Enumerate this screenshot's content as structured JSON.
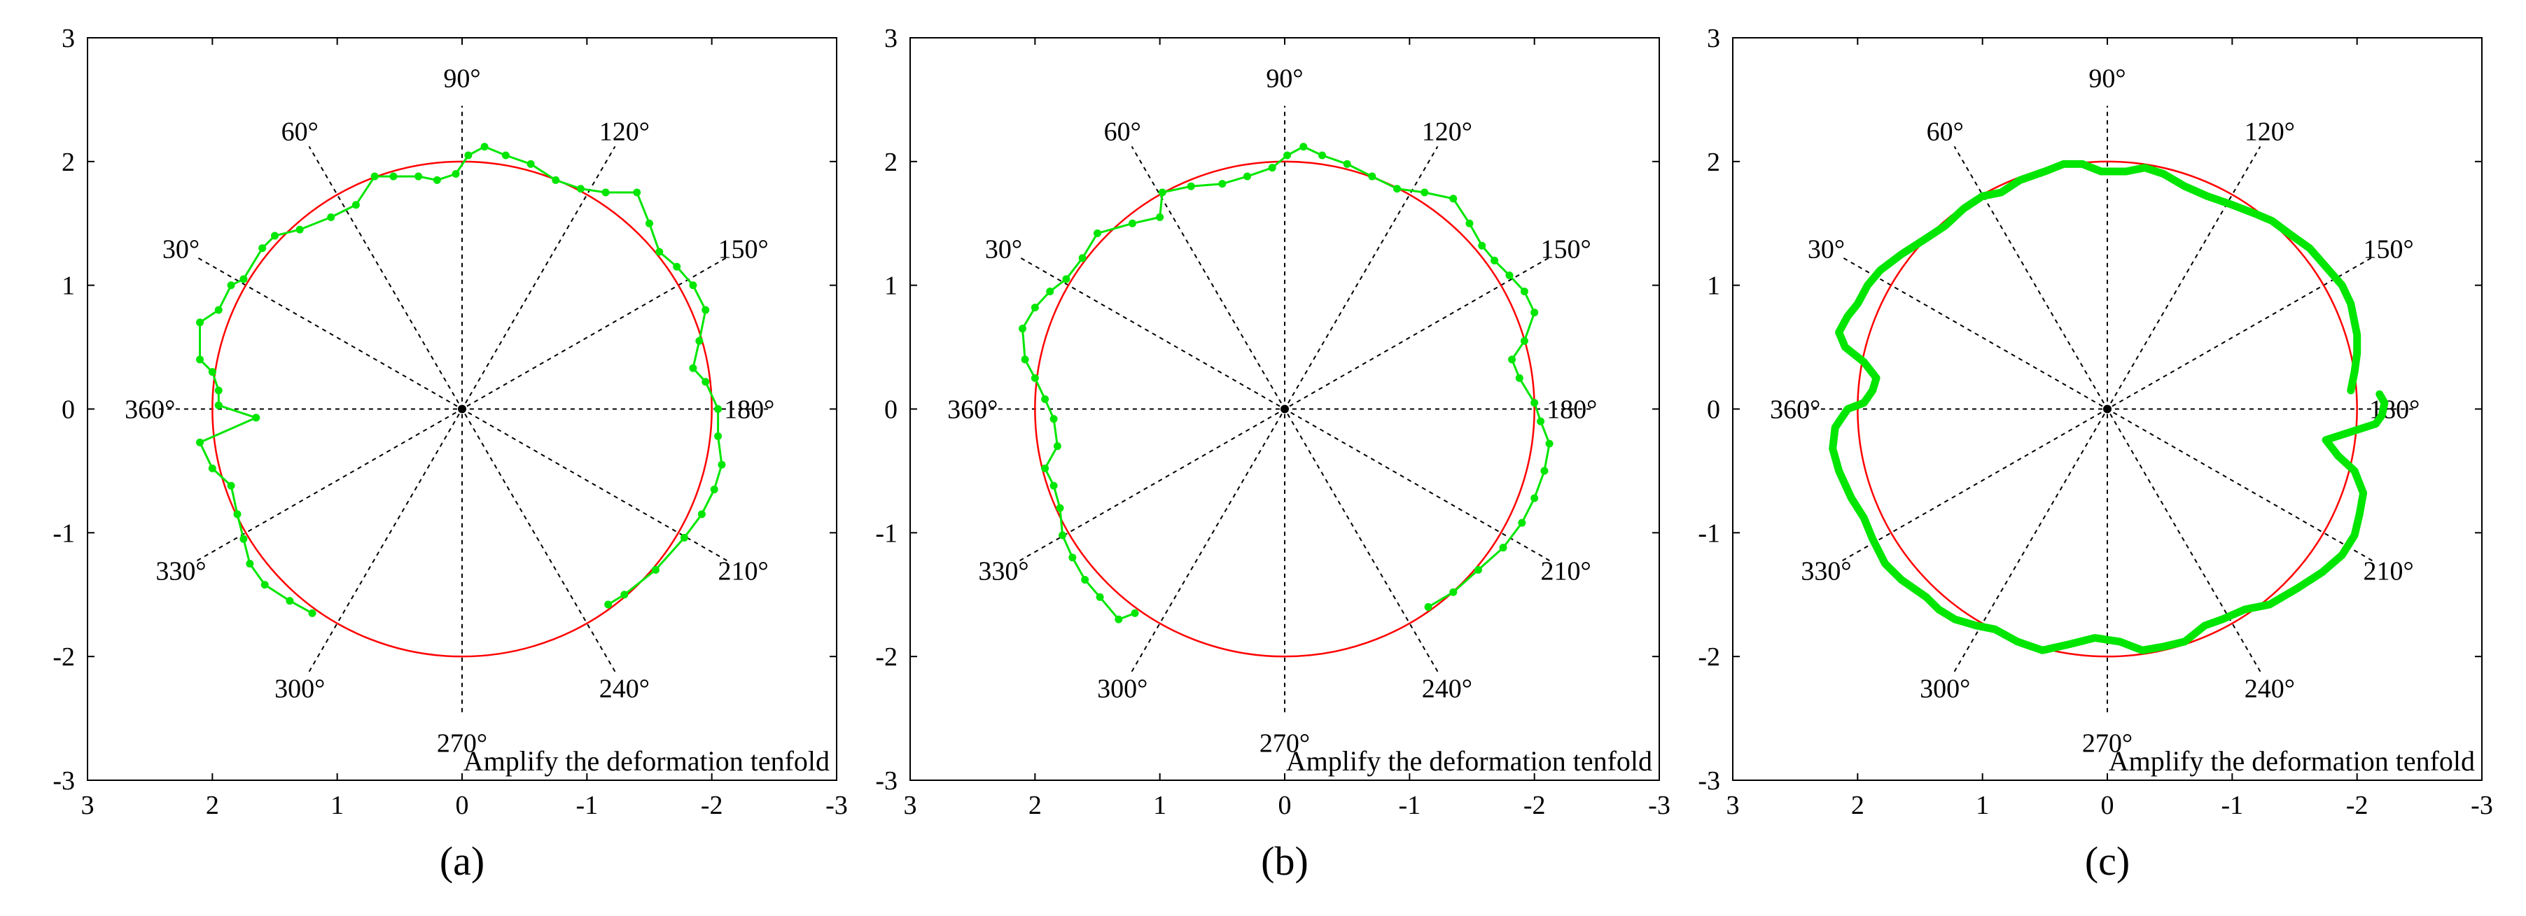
{
  "figure": {
    "panels": [
      "(a)",
      "(b)",
      "(c)"
    ]
  },
  "colors": {
    "reference_circle": "#ff0000",
    "measured_profile": "#00e600",
    "grid_lines": "#000000"
  },
  "chart_data": [
    {
      "type": "scatter",
      "panel_label": "(a)",
      "annotation": "Amplify the deformation tenfold",
      "xlim": [
        3,
        -3
      ],
      "ylim": [
        -3,
        3
      ],
      "x_ticks": [
        "3",
        "2",
        "1",
        "0",
        "-1",
        "-2",
        "-3"
      ],
      "y_ticks": [
        "3",
        "2",
        "1",
        "0",
        "-1",
        "-2",
        "-3"
      ],
      "angle_labels": [
        "30°",
        "60°",
        "90°",
        "120°",
        "150°",
        "180°",
        "210°",
        "240°",
        "270°",
        "300°",
        "330°",
        "360°"
      ],
      "reference_radius": 2,
      "markers": true,
      "series": [
        {
          "name": "profile",
          "points": [
            [
              -1.17,
              -1.58
            ],
            [
              -1.3,
              -1.5
            ],
            [
              -1.55,
              -1.3
            ],
            [
              -1.78,
              -1.04
            ],
            [
              -1.92,
              -0.85
            ],
            [
              -2.02,
              -0.65
            ],
            [
              -2.08,
              -0.45
            ],
            [
              -2.05,
              -0.22
            ],
            [
              -2.05,
              0.0
            ],
            [
              -1.95,
              0.22
            ],
            [
              -1.85,
              0.33
            ],
            [
              -1.9,
              0.55
            ],
            [
              -1.95,
              0.8
            ],
            [
              -1.85,
              1.0
            ],
            [
              -1.72,
              1.15
            ],
            [
              -1.58,
              1.27
            ],
            [
              -1.5,
              1.5
            ],
            [
              -1.4,
              1.75
            ],
            [
              -1.15,
              1.75
            ],
            [
              -0.95,
              1.78
            ],
            [
              -0.75,
              1.85
            ],
            [
              -0.55,
              1.98
            ],
            [
              -0.35,
              2.05
            ],
            [
              -0.18,
              2.12
            ],
            [
              -0.05,
              2.05
            ],
            [
              0.05,
              1.9
            ],
            [
              0.2,
              1.85
            ],
            [
              0.35,
              1.88
            ],
            [
              0.55,
              1.88
            ],
            [
              0.7,
              1.88
            ],
            [
              0.85,
              1.65
            ],
            [
              1.05,
              1.55
            ],
            [
              1.3,
              1.45
            ],
            [
              1.5,
              1.4
            ],
            [
              1.6,
              1.3
            ],
            [
              1.75,
              1.05
            ],
            [
              1.85,
              1.0
            ],
            [
              1.95,
              0.8
            ],
            [
              2.1,
              0.7
            ],
            [
              2.1,
              0.4
            ],
            [
              2.0,
              0.3
            ],
            [
              1.95,
              0.15
            ],
            [
              1.95,
              0.03
            ],
            [
              1.65,
              -0.07
            ],
            [
              2.1,
              -0.27
            ],
            [
              2.0,
              -0.48
            ],
            [
              1.85,
              -0.62
            ],
            [
              1.8,
              -0.85
            ],
            [
              1.75,
              -1.05
            ],
            [
              1.7,
              -1.25
            ],
            [
              1.58,
              -1.42
            ],
            [
              1.38,
              -1.55
            ],
            [
              1.2,
              -1.65
            ]
          ]
        }
      ]
    },
    {
      "type": "scatter",
      "panel_label": "(b)",
      "annotation": "Amplify the deformation tenfold",
      "xlim": [
        3,
        -3
      ],
      "ylim": [
        -3,
        3
      ],
      "x_ticks": [
        "3",
        "2",
        "1",
        "0",
        "-1",
        "-2",
        "-3"
      ],
      "y_ticks": [
        "3",
        "2",
        "1",
        "0",
        "-1",
        "-2",
        "-3"
      ],
      "angle_labels": [
        "30°",
        "60°",
        "90°",
        "120°",
        "150°",
        "180°",
        "210°",
        "240°",
        "270°",
        "300°",
        "330°",
        "360°"
      ],
      "reference_radius": 2,
      "markers": true,
      "series": [
        {
          "name": "profile",
          "points": [
            [
              -1.15,
              -1.6
            ],
            [
              -1.35,
              -1.48
            ],
            [
              -1.55,
              -1.3
            ],
            [
              -1.75,
              -1.12
            ],
            [
              -1.9,
              -0.92
            ],
            [
              -2.0,
              -0.72
            ],
            [
              -2.08,
              -0.5
            ],
            [
              -2.12,
              -0.28
            ],
            [
              -2.05,
              -0.1
            ],
            [
              -2.0,
              0.05
            ],
            [
              -1.88,
              0.25
            ],
            [
              -1.82,
              0.4
            ],
            [
              -1.92,
              0.55
            ],
            [
              -2.0,
              0.78
            ],
            [
              -1.92,
              0.95
            ],
            [
              -1.8,
              1.08
            ],
            [
              -1.68,
              1.2
            ],
            [
              -1.58,
              1.32
            ],
            [
              -1.48,
              1.5
            ],
            [
              -1.35,
              1.7
            ],
            [
              -1.12,
              1.75
            ],
            [
              -0.9,
              1.78
            ],
            [
              -0.7,
              1.88
            ],
            [
              -0.5,
              1.98
            ],
            [
              -0.3,
              2.05
            ],
            [
              -0.15,
              2.12
            ],
            [
              -0.02,
              2.05
            ],
            [
              0.1,
              1.95
            ],
            [
              0.3,
              1.88
            ],
            [
              0.5,
              1.82
            ],
            [
              0.75,
              1.8
            ],
            [
              0.98,
              1.75
            ],
            [
              1.0,
              1.55
            ],
            [
              1.22,
              1.5
            ],
            [
              1.5,
              1.42
            ],
            [
              1.62,
              1.22
            ],
            [
              1.75,
              1.05
            ],
            [
              1.88,
              0.95
            ],
            [
              2.0,
              0.82
            ],
            [
              2.1,
              0.65
            ],
            [
              2.08,
              0.4
            ],
            [
              2.0,
              0.25
            ],
            [
              1.92,
              0.08
            ],
            [
              1.85,
              -0.08
            ],
            [
              1.82,
              -0.3
            ],
            [
              1.92,
              -0.48
            ],
            [
              1.85,
              -0.62
            ],
            [
              1.8,
              -0.8
            ],
            [
              1.78,
              -1.02
            ],
            [
              1.7,
              -1.2
            ],
            [
              1.6,
              -1.38
            ],
            [
              1.48,
              -1.52
            ],
            [
              1.33,
              -1.7
            ],
            [
              1.2,
              -1.65
            ]
          ]
        }
      ]
    },
    {
      "type": "scatter",
      "panel_label": "(c)",
      "annotation": "Amplify the deformation tenfold",
      "xlim": [
        3,
        -3
      ],
      "ylim": [
        -3,
        3
      ],
      "x_ticks": [
        "3",
        "2",
        "1",
        "0",
        "-1",
        "-2",
        "-3"
      ],
      "y_ticks": [
        "3",
        "2",
        "1",
        "0",
        "-1",
        "-2",
        "-3"
      ],
      "angle_labels": [
        "30°",
        "60°",
        "90°",
        "120°",
        "150°",
        "180°",
        "210°",
        "240°",
        "270°",
        "300°",
        "330°",
        "360°"
      ],
      "reference_radius": 2,
      "markers": false,
      "series": [
        {
          "name": "profile",
          "points": [
            [
              -2.18,
              0.12
            ],
            [
              -2.22,
              0.05
            ],
            [
              -2.2,
              -0.05
            ],
            [
              -2.15,
              -0.12
            ],
            [
              -1.75,
              -0.25
            ],
            [
              -1.85,
              -0.38
            ],
            [
              -1.98,
              -0.5
            ],
            [
              -2.05,
              -0.68
            ],
            [
              -2.02,
              -0.85
            ],
            [
              -1.98,
              -1.02
            ],
            [
              -1.88,
              -1.18
            ],
            [
              -1.72,
              -1.32
            ],
            [
              -1.52,
              -1.45
            ],
            [
              -1.3,
              -1.58
            ],
            [
              -1.1,
              -1.62
            ],
            [
              -0.92,
              -1.7
            ],
            [
              -0.78,
              -1.75
            ],
            [
              -0.62,
              -1.88
            ],
            [
              -0.45,
              -1.92
            ],
            [
              -0.28,
              -1.95
            ],
            [
              -0.1,
              -1.88
            ],
            [
              0.1,
              -1.85
            ],
            [
              0.3,
              -1.9
            ],
            [
              0.52,
              -1.95
            ],
            [
              0.72,
              -1.88
            ],
            [
              0.9,
              -1.78
            ],
            [
              1.05,
              -1.75
            ],
            [
              1.22,
              -1.7
            ],
            [
              1.35,
              -1.62
            ],
            [
              1.45,
              -1.52
            ],
            [
              1.65,
              -1.38
            ],
            [
              1.78,
              -1.25
            ],
            [
              1.88,
              -1.05
            ],
            [
              1.95,
              -0.88
            ],
            [
              2.05,
              -0.72
            ],
            [
              2.15,
              -0.5
            ],
            [
              2.2,
              -0.32
            ],
            [
              2.18,
              -0.15
            ],
            [
              2.08,
              0.0
            ],
            [
              1.95,
              0.05
            ],
            [
              1.88,
              0.15
            ],
            [
              1.85,
              0.25
            ],
            [
              1.95,
              0.38
            ],
            [
              2.1,
              0.5
            ],
            [
              2.15,
              0.62
            ],
            [
              2.08,
              0.75
            ],
            [
              2.0,
              0.85
            ],
            [
              1.92,
              1.0
            ],
            [
              1.82,
              1.12
            ],
            [
              1.65,
              1.25
            ],
            [
              1.45,
              1.38
            ],
            [
              1.3,
              1.48
            ],
            [
              1.15,
              1.62
            ],
            [
              1.0,
              1.72
            ],
            [
              0.85,
              1.75
            ],
            [
              0.7,
              1.85
            ],
            [
              0.5,
              1.92
            ],
            [
              0.35,
              1.98
            ],
            [
              0.2,
              1.98
            ],
            [
              0.05,
              1.92
            ],
            [
              -0.15,
              1.92
            ],
            [
              -0.3,
              1.95
            ],
            [
              -0.45,
              1.9
            ],
            [
              -0.62,
              1.8
            ],
            [
              -0.8,
              1.72
            ],
            [
              -1.0,
              1.65
            ],
            [
              -1.18,
              1.58
            ],
            [
              -1.32,
              1.52
            ],
            [
              -1.48,
              1.4
            ],
            [
              -1.62,
              1.3
            ],
            [
              -1.75,
              1.15
            ],
            [
              -1.88,
              1.0
            ],
            [
              -1.95,
              0.85
            ],
            [
              -2.0,
              0.6
            ],
            [
              -2.0,
              0.45
            ],
            [
              -1.98,
              0.3
            ],
            [
              -1.95,
              0.15
            ]
          ]
        }
      ]
    }
  ]
}
